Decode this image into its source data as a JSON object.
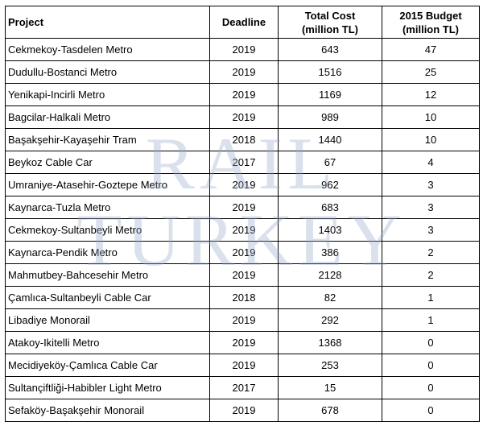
{
  "watermark": {
    "line1": "RAIL",
    "line2": "TURKEY"
  },
  "headers": {
    "project": "Project",
    "deadline": "Deadline",
    "total_cost_1": "Total Cost",
    "total_cost_2": "(million TL)",
    "budget_1": "2015 Budget",
    "budget_2": "(million TL)"
  },
  "rows": [
    {
      "project": "Cekmekoy-Tasdelen Metro",
      "deadline": "2019",
      "cost": "643",
      "budget": "47"
    },
    {
      "project": "Dudullu-Bostanci Metro",
      "deadline": "2019",
      "cost": "1516",
      "budget": "25"
    },
    {
      "project": "Yenikapi-Incirli Metro",
      "deadline": "2019",
      "cost": "1169",
      "budget": "12"
    },
    {
      "project": "Bagcilar-Halkali Metro",
      "deadline": "2019",
      "cost": "989",
      "budget": "10"
    },
    {
      "project": "Başakşehir-Kayaşehir Tram",
      "deadline": "2018",
      "cost": "1440",
      "budget": "10"
    },
    {
      "project": "Beykoz Cable Car",
      "deadline": "2017",
      "cost": "67",
      "budget": "4"
    },
    {
      "project": "Umraniye-Atasehir-Goztepe Metro",
      "deadline": "2019",
      "cost": "962",
      "budget": "3"
    },
    {
      "project": "Kaynarca-Tuzla Metro",
      "deadline": "2019",
      "cost": "683",
      "budget": "3"
    },
    {
      "project": "Cekmekoy-Sultanbeyli Metro",
      "deadline": "2019",
      "cost": "1403",
      "budget": "3"
    },
    {
      "project": "Kaynarca-Pendik Metro",
      "deadline": "2019",
      "cost": "386",
      "budget": "2"
    },
    {
      "project": "Mahmutbey-Bahcesehir Metro",
      "deadline": "2019",
      "cost": "2128",
      "budget": "2"
    },
    {
      "project": "Çamlıca-Sultanbeyli Cable Car",
      "deadline": "2018",
      "cost": "82",
      "budget": "1"
    },
    {
      "project": "Libadiye Monorail",
      "deadline": "2019",
      "cost": "292",
      "budget": "1"
    },
    {
      "project": "Atakoy-Ikitelli Metro",
      "deadline": "2019",
      "cost": "1368",
      "budget": "0"
    },
    {
      "project": "Mecidiyeköy-Çamlıca Cable Car",
      "deadline": "2019",
      "cost": "253",
      "budget": "0"
    },
    {
      "project": "Sultançiftliği-Habibler Light Metro",
      "deadline": "2017",
      "cost": "15",
      "budget": "0"
    },
    {
      "project": "Sefaköy-Başakşehir Monorail",
      "deadline": "2019",
      "cost": "678",
      "budget": "0"
    }
  ]
}
